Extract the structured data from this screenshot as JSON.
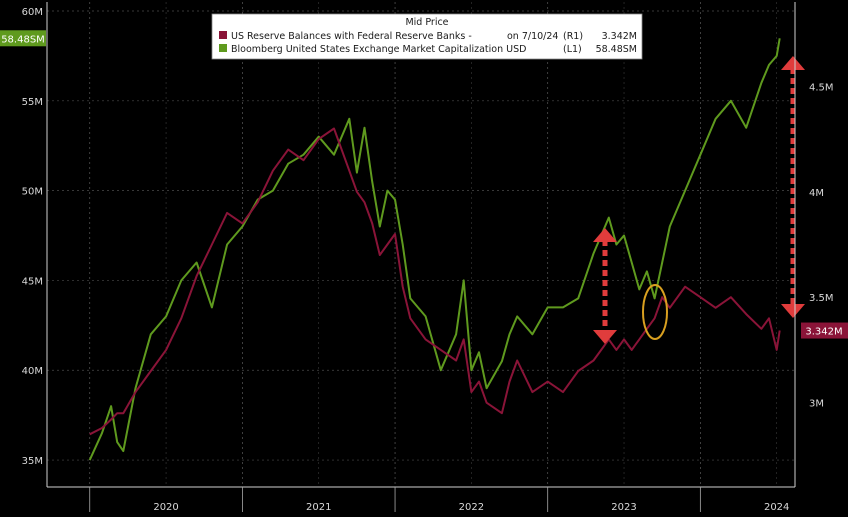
{
  "chart_data": {
    "type": "line",
    "title": "",
    "legend": {
      "heading": "Mid Price",
      "placement": "top-center",
      "entries": [
        {
          "label": "US Reserve Balances with Federal Reserve Banks -",
          "date": "on 7/10/24",
          "axis": "(R1)",
          "last": "3.342M"
        },
        {
          "label": "Bloomberg United States Exchange Market Capitalization USD",
          "date": "",
          "axis": "(L1)",
          "last": "58.48SM"
        }
      ]
    },
    "x_ticks": [
      "2020",
      "2021",
      "2022",
      "2023",
      "2024"
    ],
    "y_left": {
      "ticks": [
        "60M",
        "55M",
        "50M",
        "45M",
        "40M",
        "35M"
      ],
      "values": [
        60,
        55,
        50,
        45,
        40,
        35
      ],
      "ylim": [
        33.5,
        60.5
      ]
    },
    "y_right": {
      "ticks": [
        "4.5M",
        "4M",
        "3.5M",
        "3M"
      ],
      "values": [
        4.5,
        4.0,
        3.5,
        3.0
      ],
      "ylim": [
        2.6,
        4.9
      ]
    },
    "last_value_labels": {
      "left": "58.48SM",
      "right": "3.342M"
    },
    "grid": true,
    "series": [
      {
        "name": "Bloomberg United States Exchange Market Capitalization USD",
        "axis": "left",
        "color": "#5f9a1e",
        "x": [
          2020.0,
          2020.08,
          2020.14,
          2020.18,
          2020.22,
          2020.3,
          2020.4,
          2020.5,
          2020.6,
          2020.7,
          2020.8,
          2020.9,
          2021.0,
          2021.1,
          2021.2,
          2021.3,
          2021.4,
          2021.5,
          2021.6,
          2021.7,
          2021.75,
          2021.8,
          2021.85,
          2021.9,
          2021.95,
          2022.0,
          2022.05,
          2022.1,
          2022.2,
          2022.3,
          2022.4,
          2022.45,
          2022.5,
          2022.55,
          2022.6,
          2022.7,
          2022.75,
          2022.8,
          2022.9,
          2023.0,
          2023.1,
          2023.2,
          2023.3,
          2023.4,
          2023.45,
          2023.5,
          2023.55,
          2023.6,
          2023.65,
          2023.7,
          2023.75,
          2023.8,
          2023.9,
          2024.0,
          2024.1,
          2024.2,
          2024.3,
          2024.4,
          2024.45,
          2024.5,
          2024.52
        ],
        "values": [
          35.0,
          36.5,
          38.0,
          36.0,
          35.5,
          39.0,
          42.0,
          43.0,
          45.0,
          46.0,
          43.5,
          47.0,
          48.0,
          49.5,
          50.0,
          51.5,
          52.0,
          53.0,
          52.0,
          54.0,
          51.0,
          53.5,
          50.5,
          48.0,
          50.0,
          49.5,
          47.0,
          44.0,
          43.0,
          40.0,
          42.0,
          45.0,
          40.0,
          41.0,
          39.0,
          40.5,
          42.0,
          43.0,
          42.0,
          43.5,
          43.5,
          44.0,
          46.5,
          48.5,
          47.0,
          47.5,
          46.0,
          44.5,
          45.5,
          44.0,
          46.0,
          48.0,
          50.0,
          52.0,
          54.0,
          55.0,
          53.5,
          56.0,
          57.0,
          57.5,
          58.48
        ]
      },
      {
        "name": "US Reserve Balances with Federal Reserve Banks",
        "axis": "right",
        "color": "#8a1438",
        "x": [
          2020.0,
          2020.08,
          2020.14,
          2020.18,
          2020.22,
          2020.3,
          2020.4,
          2020.5,
          2020.6,
          2020.7,
          2020.8,
          2020.9,
          2021.0,
          2021.1,
          2021.2,
          2021.3,
          2021.4,
          2021.5,
          2021.6,
          2021.7,
          2021.75,
          2021.8,
          2021.85,
          2021.9,
          2021.95,
          2022.0,
          2022.05,
          2022.1,
          2022.2,
          2022.3,
          2022.4,
          2022.45,
          2022.5,
          2022.55,
          2022.6,
          2022.7,
          2022.75,
          2022.8,
          2022.9,
          2023.0,
          2023.1,
          2023.2,
          2023.3,
          2023.4,
          2023.45,
          2023.5,
          2023.55,
          2023.6,
          2023.65,
          2023.7,
          2023.75,
          2023.8,
          2023.9,
          2024.0,
          2024.1,
          2024.2,
          2024.3,
          2024.4,
          2024.45,
          2024.5,
          2024.52
        ],
        "values": [
          2.85,
          2.88,
          2.92,
          2.95,
          2.95,
          3.05,
          3.15,
          3.25,
          3.4,
          3.6,
          3.75,
          3.9,
          3.85,
          3.95,
          4.1,
          4.2,
          4.15,
          4.25,
          4.3,
          4.1,
          4.0,
          3.95,
          3.85,
          3.7,
          3.75,
          3.8,
          3.55,
          3.4,
          3.3,
          3.25,
          3.2,
          3.3,
          3.05,
          3.1,
          3.0,
          2.95,
          3.1,
          3.2,
          3.05,
          3.1,
          3.05,
          3.15,
          3.2,
          3.3,
          3.25,
          3.3,
          3.25,
          3.3,
          3.35,
          3.4,
          3.5,
          3.45,
          3.55,
          3.5,
          3.45,
          3.5,
          3.42,
          3.35,
          3.4,
          3.25,
          3.342
        ]
      }
    ]
  },
  "annotations": {
    "arrow_color": "#e03c3c",
    "circle_color": "#d9a020"
  }
}
